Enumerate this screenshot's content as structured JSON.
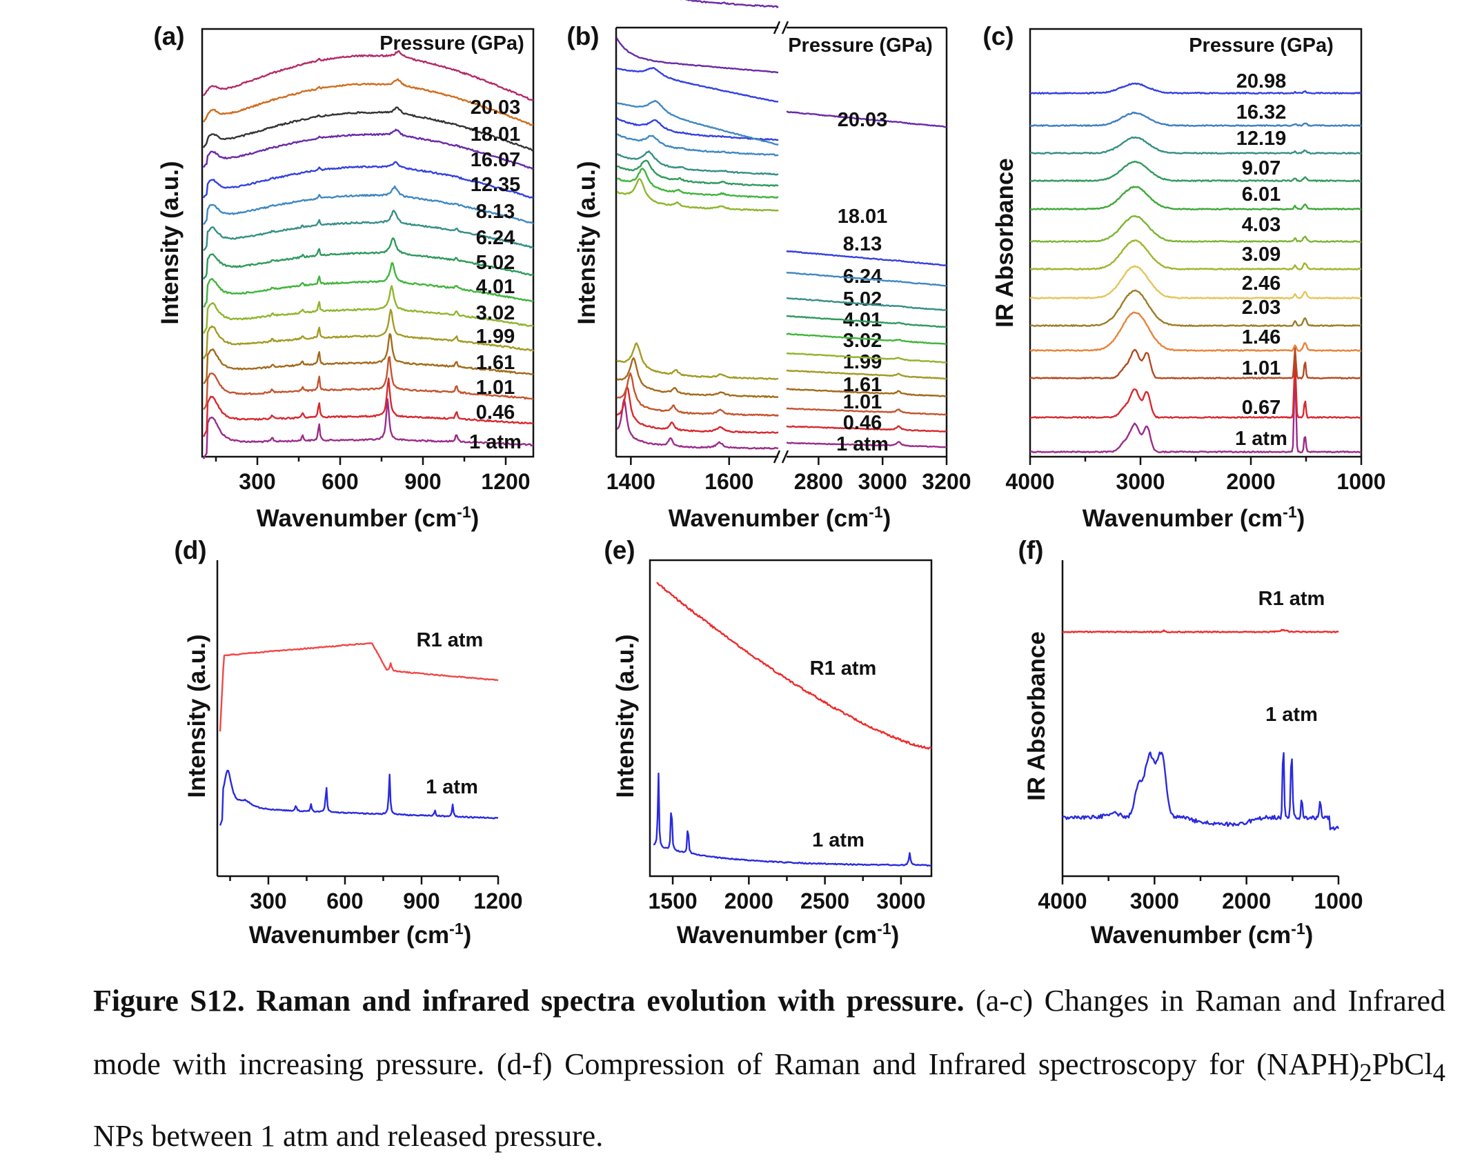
{
  "figure": {
    "caption": {
      "label": "Figure S12. Raman and infrared spectra evolution with pressure.",
      "text_a": " (a-c) Changes in Raman and Infrared mode with increasing pressure. (d-f) Compression of Raman and Infrared spectroscopy for (NAPH)",
      "sub1": "2",
      "text_b": "PbCl",
      "sub2": "4",
      "text_c": " NPs between 1 atm and released pressure."
    }
  },
  "chart_data": [
    {
      "id": "a",
      "panel_label": "(a)",
      "type": "line",
      "xlabel": "Wavenumber (cm-1)",
      "ylabel": "Intensity (a.u.)",
      "legend_title": "Pressure (GPa)",
      "xlim": [
        100,
        1300
      ],
      "xticks": [
        300,
        600,
        900,
        1200
      ],
      "series": [
        {
          "label": "1 atm",
          "color": "#9c2b8a"
        },
        {
          "label": "0.46",
          "color": "#d8282e"
        },
        {
          "label": "1.01",
          "color": "#c4542e"
        },
        {
          "label": "1.61",
          "color": "#a36a1a"
        },
        {
          "label": "1.99",
          "color": "#a39a23"
        },
        {
          "label": "3.02",
          "color": "#8fb52c"
        },
        {
          "label": "4.01",
          "color": "#3fb53a"
        },
        {
          "label": "5.02",
          "color": "#2f9a5c"
        },
        {
          "label": "6.24",
          "color": "#358f86"
        },
        {
          "label": "8.13",
          "color": "#3f88c2"
        },
        {
          "label": "12.35",
          "color": "#3440e0"
        },
        {
          "label": "16.07",
          "color": "#6a2aa8"
        },
        {
          "label": "18.01",
          "color": "#333333"
        },
        {
          "label": "20.03",
          "color": "#d06d1e"
        },
        {
          "label": "",
          "color": "#b32a6a"
        }
      ]
    },
    {
      "id": "b",
      "panel_label": "(b)",
      "type": "line",
      "xlabel": "Wavenumber (cm-1)",
      "ylabel": "Intensity (a.u.)",
      "legend_title": "Pressure (GPa)",
      "axis_break": true,
      "xlim_left": [
        1370,
        1700
      ],
      "xlim_right": [
        2700,
        3200
      ],
      "xticks": [
        1400,
        1600,
        2800,
        3000,
        3200
      ],
      "series": [
        {
          "label": "1 atm",
          "color": "#9c2b8a"
        },
        {
          "label": "0.46",
          "color": "#d8282e"
        },
        {
          "label": "1.01",
          "color": "#c4542e"
        },
        {
          "label": "1.61",
          "color": "#a36a1a"
        },
        {
          "label": "1.99",
          "color": "#a39a23"
        },
        {
          "label": "3.02",
          "color": "#8fb52c"
        },
        {
          "label": "4.01",
          "color": "#3fb53a"
        },
        {
          "label": "5.02",
          "color": "#2f9a5c"
        },
        {
          "label": "6.24",
          "color": "#358f86"
        },
        {
          "label": "8.13",
          "color": "#3f88c2"
        },
        {
          "label": "18.01",
          "color": "#3440e0"
        },
        {
          "label": "20.03",
          "color": "#6a2aa8"
        }
      ]
    },
    {
      "id": "c",
      "panel_label": "(c)",
      "type": "line",
      "xlabel": "Wavenumber (cm-1)",
      "ylabel": "IR Absorbance",
      "legend_title": "Pressure (GPa)",
      "xlim": [
        4000,
        1000
      ],
      "xticks": [
        4000,
        3000,
        2000,
        1000
      ],
      "series": [
        {
          "label": "1 atm",
          "color": "#9c2b8a"
        },
        {
          "label": "0.67",
          "color": "#d8282e"
        },
        {
          "label": "1.01",
          "color": "#b34a22"
        },
        {
          "label": "1.46",
          "color": "#e8833a"
        },
        {
          "label": "2.03",
          "color": "#9c7d26"
        },
        {
          "label": "2.46",
          "color": "#e6c45a"
        },
        {
          "label": "3.09",
          "color": "#9fb52a"
        },
        {
          "label": "4.03",
          "color": "#7ab530"
        },
        {
          "label": "6.01",
          "color": "#3ea838"
        },
        {
          "label": "9.07",
          "color": "#2f9a5c"
        },
        {
          "label": "12.19",
          "color": "#358f86"
        },
        {
          "label": "16.32",
          "color": "#3f7fc2"
        },
        {
          "label": "20.98",
          "color": "#3440e0"
        }
      ]
    },
    {
      "id": "d",
      "panel_label": "(d)",
      "type": "line",
      "xlabel": "Wavenumber (cm-1)",
      "ylabel": "Intensity (a.u.)",
      "xlim": [
        100,
        1200
      ],
      "xticks": [
        300,
        600,
        900,
        1200
      ],
      "series": [
        {
          "label": "R1 atm",
          "color": "#f04848"
        },
        {
          "label": "1 atm",
          "color": "#2a2ae0"
        }
      ]
    },
    {
      "id": "e",
      "panel_label": "(e)",
      "type": "line",
      "xlabel": "Wavenumber (cm-1)",
      "ylabel": "Intensity (a.u.)",
      "xlim": [
        1350,
        3200
      ],
      "xticks": [
        1500,
        2000,
        2500,
        3000
      ],
      "series": [
        {
          "label": "R1 atm",
          "color": "#ee2a2a"
        },
        {
          "label": "1 atm",
          "color": "#2a2ae0"
        }
      ]
    },
    {
      "id": "f",
      "panel_label": "(f)",
      "type": "line",
      "xlabel": "Wavenumber (cm-1)",
      "ylabel": "IR Absorbance",
      "xlim": [
        4000,
        1000
      ],
      "xticks": [
        4000,
        3000,
        2000,
        1000
      ],
      "series": [
        {
          "label": "R1 atm",
          "color": "#ee2a2a"
        },
        {
          "label": "1 atm",
          "color": "#2a2ae0"
        }
      ]
    }
  ]
}
